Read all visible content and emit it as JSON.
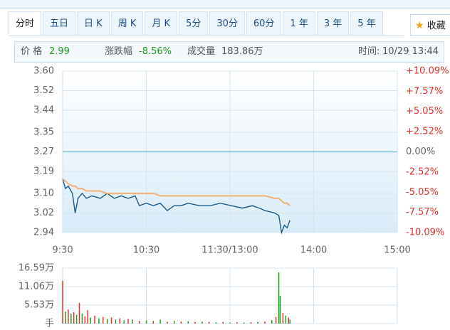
{
  "tabs": [
    "分时",
    "五日",
    "日 K",
    "周 K",
    "月 K",
    "5分",
    "30分",
    "60分",
    "1 年",
    "3 年",
    "5 年"
  ],
  "favorite": "收藏",
  "info": {
    "price_label": "价 格",
    "price": "2.99",
    "change_label": "涨跌幅",
    "change": "-8.56%",
    "volume_label": "成交量",
    "volume": "183.86万",
    "time_label": "时间:",
    "time": "10/29 13:44"
  },
  "chart_data": [
    {
      "type": "line",
      "x": [
        0,
        2,
        4,
        7,
        9,
        11,
        14,
        17,
        21,
        27,
        32,
        37,
        42,
        47,
        52,
        55,
        60,
        65,
        70,
        75,
        80,
        85,
        90,
        98,
        106,
        113,
        121,
        129,
        136,
        141,
        145,
        152,
        155,
        157,
        159,
        161,
        163
      ],
      "series": [
        {
          "color": "#1d5b8c",
          "values": [
            3.16,
            3.12,
            3.13,
            3.1,
            3.02,
            3.08,
            3.1,
            3.08,
            3.09,
            3.08,
            3.1,
            3.08,
            3.09,
            3.08,
            3.09,
            3.05,
            3.06,
            3.05,
            3.06,
            3.03,
            3.05,
            3.05,
            3.06,
            3.05,
            3.05,
            3.06,
            3.05,
            3.04,
            3.05,
            3.04,
            3.03,
            3.02,
            3.01,
            2.94,
            2.97,
            2.96,
            2.99
          ]
        },
        {
          "color": "#f2b27a",
          "values": [
            3.16,
            3.15,
            3.14,
            3.13,
            3.13,
            3.12,
            3.12,
            3.11,
            3.11,
            3.11,
            3.1,
            3.1,
            3.1,
            3.1,
            3.1,
            3.1,
            3.1,
            3.1,
            3.09,
            3.09,
            3.09,
            3.09,
            3.09,
            3.09,
            3.09,
            3.09,
            3.09,
            3.09,
            3.09,
            3.09,
            3.09,
            3.08,
            3.08,
            3.07,
            3.06,
            3.06,
            3.05
          ]
        }
      ],
      "reference": 3.27,
      "reference_color": "#7cc0d8",
      "xlim": [
        0,
        240
      ],
      "xticks": [
        {
          "value": 0,
          "label": "9:30"
        },
        {
          "value": 60,
          "label": "10:30"
        },
        {
          "value": 120,
          "label": "11:30/13:00"
        },
        {
          "value": 180,
          "label": "14:00"
        },
        {
          "value": 240,
          "label": "15:00"
        }
      ],
      "ylim": [
        2.94,
        3.6
      ],
      "yticks": [
        {
          "value": 3.6,
          "label": "3.60"
        },
        3.52,
        3.44,
        3.35,
        3.27,
        3.19,
        {
          "value": 3.1,
          "label": "3.10"
        },
        3.02,
        2.94
      ],
      "y2lim": [
        -10.09,
        10.09
      ],
      "y2ticks": [
        {
          "value": 10.09,
          "label": "+10.09%"
        },
        {
          "value": 7.57,
          "label": "+7.57%"
        },
        {
          "value": 5.05,
          "label": "+5.05%"
        },
        {
          "value": 2.52,
          "label": "+2.52%"
        },
        {
          "value": 0,
          "label": "0.00%"
        },
        {
          "value": -2.52,
          "label": "-2.52%"
        },
        {
          "value": -5.05,
          "label": "-5.05%"
        },
        {
          "value": -7.57,
          "label": "-7.57%"
        },
        {
          "value": -10.09,
          "label": "-10.09%"
        }
      ],
      "grid": true
    },
    {
      "type": "bar",
      "x": [
        0,
        2,
        4,
        6,
        8,
        10,
        12,
        14,
        16,
        18,
        20,
        23,
        26,
        29,
        32,
        35,
        38,
        41,
        44,
        47,
        50,
        55,
        60,
        65,
        70,
        75,
        80,
        85,
        90,
        95,
        100,
        105,
        110,
        115,
        120,
        125,
        130,
        135,
        140,
        145,
        150,
        153,
        155,
        156,
        158,
        160,
        162,
        163
      ],
      "values": [
        12.8,
        3.6,
        4.2,
        3.0,
        3.4,
        2.6,
        6.2,
        3.0,
        2.2,
        4.0,
        1.8,
        2.4,
        1.6,
        2.0,
        1.4,
        1.8,
        1.2,
        1.6,
        1.0,
        1.4,
        1.2,
        0.8,
        1.0,
        0.8,
        1.2,
        0.6,
        0.8,
        0.6,
        0.7,
        0.5,
        0.6,
        0.5,
        0.4,
        0.5,
        0.3,
        0.4,
        0.3,
        0.4,
        0.5,
        0.6,
        1.0,
        2.0,
        15.3,
        8.3,
        3.2,
        2.4,
        1.8,
        1.2
      ],
      "colors": [
        "#e0302c",
        "#1aa01a",
        "#e0302c",
        "#1aa01a",
        "#e0302c",
        "#1aa01a",
        "#e0302c",
        "#1aa01a",
        "#e0302c",
        "#e0302c",
        "#1aa01a",
        "#e0302c",
        "#1aa01a",
        "#e0302c",
        "#1aa01a",
        "#e0302c",
        "#1aa01a",
        "#e0302c",
        "#1aa01a",
        "#e0302c",
        "#1aa01a",
        "#e0302c",
        "#1aa01a",
        "#e0302c",
        "#1aa01a",
        "#e0302c",
        "#1aa01a",
        "#e0302c",
        "#1aa01a",
        "#e0302c",
        "#1aa01a",
        "#e0302c",
        "#1aa01a",
        "#e0302c",
        "#1aa01a",
        "#e0302c",
        "#1aa01a",
        "#e0302c",
        "#1aa01a",
        "#e0302c",
        "#1aa01a",
        "#e0302c",
        "#1aa01a",
        "#1aa01a",
        "#e0302c",
        "#1aa01a",
        "#e0302c",
        "#1aa01a"
      ],
      "xlim": [
        0,
        240
      ],
      "ylim": [
        0,
        16.59
      ],
      "yticks": [
        {
          "value": 16.59,
          "label": "16.59万"
        },
        {
          "value": 11.06,
          "label": "11.06万"
        },
        {
          "value": 5.53,
          "label": "5.53万"
        },
        {
          "value": 0,
          "label": "手"
        }
      ],
      "grid": true
    }
  ]
}
